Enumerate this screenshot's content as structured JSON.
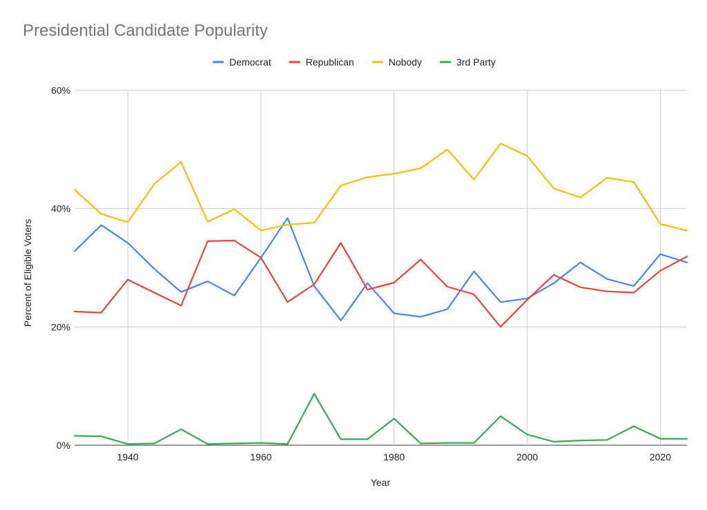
{
  "chart_data": {
    "type": "line",
    "title": "Presidential Candidate Popularity",
    "xlabel": "Year",
    "ylabel": "Percent of Eligible Voters",
    "xlim": [
      1932,
      2024
    ],
    "ylim": [
      0,
      60
    ],
    "x_ticks": [
      1940,
      1960,
      1980,
      2000,
      2020
    ],
    "y_ticks": [
      0,
      20,
      40,
      60
    ],
    "y_tick_labels": [
      "0%",
      "20%",
      "40%",
      "60%"
    ],
    "grid": true,
    "legend_position": "top",
    "x": [
      1932,
      1936,
      1940,
      1944,
      1948,
      1952,
      1956,
      1960,
      1964,
      1968,
      1972,
      1976,
      1980,
      1984,
      1988,
      1992,
      1996,
      2000,
      2004,
      2008,
      2012,
      2016,
      2020,
      2024
    ],
    "series": [
      {
        "name": "Democrat",
        "color": "#4285f4",
        "values": [
          32.8,
          37.2,
          34.2,
          29.8,
          25.9,
          27.7,
          25.3,
          31.7,
          38.4,
          26.9,
          21.1,
          27.4,
          22.3,
          21.7,
          23.0,
          29.4,
          24.2,
          24.8,
          27.4,
          30.9,
          28.1,
          26.9,
          32.3,
          30.9
        ]
      },
      {
        "name": "Republican",
        "color": "#ea4335",
        "values": [
          22.6,
          22.4,
          28.0,
          25.8,
          23.6,
          34.5,
          34.6,
          31.7,
          24.2,
          27.2,
          34.2,
          26.3,
          27.5,
          31.4,
          26.8,
          25.5,
          20.0,
          24.6,
          28.8,
          26.7,
          26.0,
          25.8,
          29.5,
          31.9
        ]
      },
      {
        "name": "Nobody",
        "color": "#fbbc04",
        "values": [
          43.2,
          39.1,
          37.7,
          44.2,
          47.9,
          37.8,
          39.9,
          36.3,
          37.3,
          37.6,
          43.9,
          45.3,
          45.9,
          46.8,
          50.0,
          44.9,
          51.0,
          48.9,
          43.4,
          41.9,
          45.2,
          44.5,
          37.4,
          36.3
        ]
      },
      {
        "name": "3rd Party",
        "color": "#34a853",
        "values": [
          1.6,
          1.5,
          0.2,
          0.3,
          2.7,
          0.2,
          0.3,
          0.4,
          0.2,
          8.7,
          1.0,
          1.0,
          4.5,
          0.3,
          0.4,
          0.4,
          4.9,
          1.8,
          0.6,
          0.8,
          0.9,
          3.2,
          1.1,
          1.1
        ]
      }
    ]
  }
}
